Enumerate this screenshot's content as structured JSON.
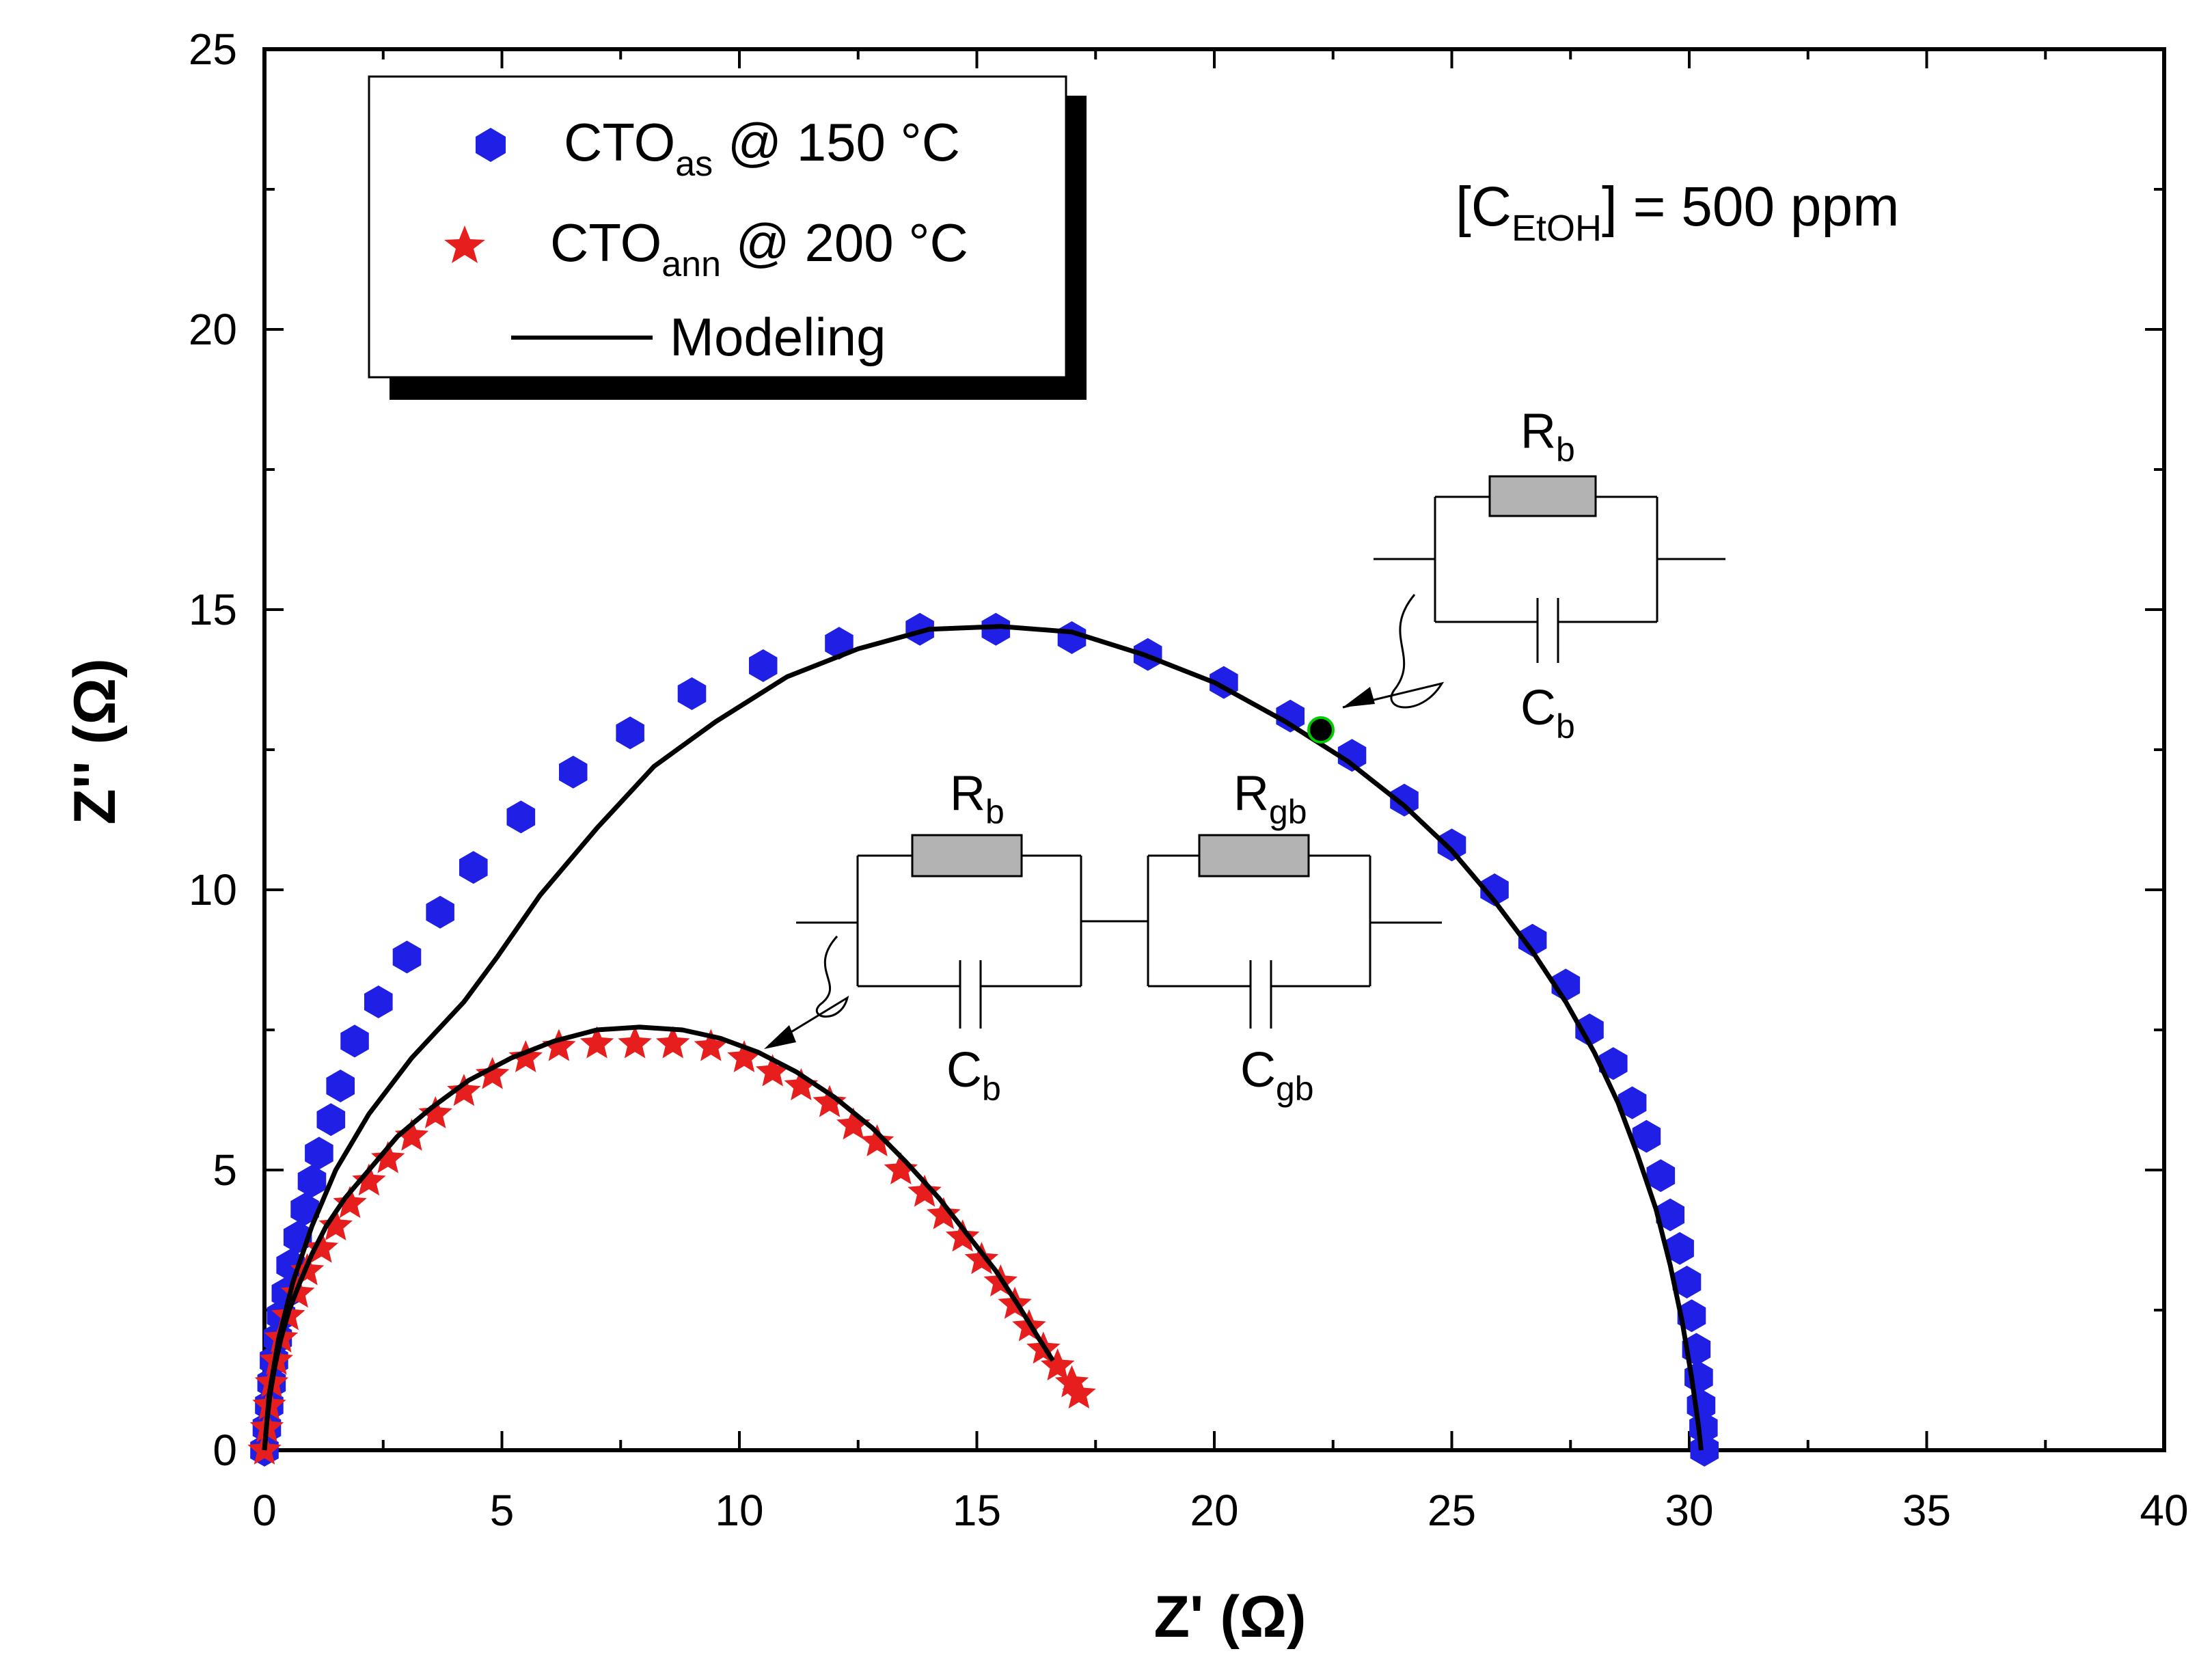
{
  "chart_data": {
    "type": "scatter",
    "title": "",
    "xlabel": "Z' (Ω)",
    "ylabel": "Z'' (Ω)",
    "xlim": [
      0,
      40
    ],
    "ylim": [
      0,
      25
    ],
    "x_ticks": [
      "0",
      "5",
      "10",
      "15",
      "20",
      "25",
      "30",
      "35",
      "40"
    ],
    "y_ticks": [
      "0",
      "5",
      "10",
      "15",
      "20",
      "25"
    ],
    "grid": false,
    "legend_position": "top-left",
    "annotation": {
      "text_main": "[C",
      "text_sub": "EtOH",
      "text_tail": "] = 500 ppm"
    },
    "series": [
      {
        "name_main": "CTO",
        "name_sub": "as",
        "name_tail": " @ 150 °C",
        "marker": "hexagon",
        "color": "#1f1fe6",
        "points": [
          [
            0.0,
            0.0
          ],
          [
            0.05,
            0.4
          ],
          [
            0.1,
            0.8
          ],
          [
            0.15,
            1.2
          ],
          [
            0.2,
            1.6
          ],
          [
            0.28,
            2.0
          ],
          [
            0.35,
            2.4
          ],
          [
            0.45,
            2.8
          ],
          [
            0.55,
            3.3
          ],
          [
            0.7,
            3.8
          ],
          [
            0.85,
            4.3
          ],
          [
            1.0,
            4.8
          ],
          [
            1.15,
            5.3
          ],
          [
            1.4,
            5.9
          ],
          [
            1.6,
            6.5
          ],
          [
            1.9,
            7.3
          ],
          [
            2.4,
            8.0
          ],
          [
            3.0,
            8.8
          ],
          [
            3.7,
            9.6
          ],
          [
            4.4,
            10.4
          ],
          [
            5.4,
            11.3
          ],
          [
            6.5,
            12.1
          ],
          [
            7.7,
            12.8
          ],
          [
            9.0,
            13.5
          ],
          [
            10.5,
            14.0
          ],
          [
            12.1,
            14.4
          ],
          [
            13.8,
            14.65
          ],
          [
            15.4,
            14.65
          ],
          [
            17.0,
            14.5
          ],
          [
            18.6,
            14.2
          ],
          [
            20.2,
            13.7
          ],
          [
            21.6,
            13.1
          ],
          [
            22.9,
            12.4
          ],
          [
            24.0,
            11.6
          ],
          [
            25.0,
            10.8
          ],
          [
            25.9,
            10.0
          ],
          [
            26.7,
            9.1
          ],
          [
            27.4,
            8.3
          ],
          [
            27.9,
            7.5
          ],
          [
            28.4,
            6.9
          ],
          [
            28.8,
            6.2
          ],
          [
            29.1,
            5.6
          ],
          [
            29.4,
            4.9
          ],
          [
            29.6,
            4.2
          ],
          [
            29.8,
            3.6
          ],
          [
            29.95,
            3.0
          ],
          [
            30.05,
            2.4
          ],
          [
            30.15,
            1.8
          ],
          [
            30.2,
            1.3
          ],
          [
            30.25,
            0.8
          ],
          [
            30.3,
            0.4
          ],
          [
            30.32,
            0.0
          ]
        ]
      },
      {
        "name_main": "CTO",
        "name_sub": "ann",
        "name_tail": " @ 200 °C",
        "marker": "star",
        "color": "#e61e1e",
        "points": [
          [
            0.0,
            0.0
          ],
          [
            0.05,
            0.4
          ],
          [
            0.1,
            0.8
          ],
          [
            0.15,
            1.2
          ],
          [
            0.25,
            1.6
          ],
          [
            0.35,
            2.0
          ],
          [
            0.5,
            2.4
          ],
          [
            0.7,
            2.8
          ],
          [
            0.9,
            3.2
          ],
          [
            1.2,
            3.6
          ],
          [
            1.5,
            4.0
          ],
          [
            1.8,
            4.4
          ],
          [
            2.2,
            4.8
          ],
          [
            2.6,
            5.2
          ],
          [
            3.1,
            5.6
          ],
          [
            3.6,
            6.0
          ],
          [
            4.2,
            6.4
          ],
          [
            4.8,
            6.7
          ],
          [
            5.5,
            7.0
          ],
          [
            6.2,
            7.2
          ],
          [
            7.0,
            7.25
          ],
          [
            7.8,
            7.25
          ],
          [
            8.6,
            7.25
          ],
          [
            9.4,
            7.2
          ],
          [
            10.1,
            7.0
          ],
          [
            10.7,
            6.75
          ],
          [
            11.3,
            6.5
          ],
          [
            11.9,
            6.2
          ],
          [
            12.4,
            5.8
          ],
          [
            12.9,
            5.5
          ],
          [
            13.4,
            5.0
          ],
          [
            13.9,
            4.6
          ],
          [
            14.3,
            4.2
          ],
          [
            14.7,
            3.8
          ],
          [
            15.1,
            3.4
          ],
          [
            15.5,
            3.0
          ],
          [
            15.8,
            2.6
          ],
          [
            16.1,
            2.2
          ],
          [
            16.4,
            1.8
          ],
          [
            16.7,
            1.5
          ],
          [
            17.0,
            1.2
          ],
          [
            17.15,
            1.0
          ]
        ]
      },
      {
        "name": "Modeling",
        "marker": "line",
        "color": "#000000",
        "points": [
          [
            0.0,
            0.0
          ],
          [
            0.1,
            1.0
          ],
          [
            0.3,
            2.0
          ],
          [
            0.6,
            3.0
          ],
          [
            1.0,
            4.0
          ],
          [
            1.5,
            5.0
          ],
          [
            2.2,
            6.0
          ],
          [
            3.1,
            7.0
          ],
          [
            4.2,
            8.0
          ],
          [
            4.9,
            8.8
          ],
          [
            5.8,
            9.9
          ],
          [
            7.0,
            11.1
          ],
          [
            8.2,
            12.2
          ],
          [
            9.5,
            13.0
          ],
          [
            11.0,
            13.8
          ],
          [
            12.5,
            14.3
          ],
          [
            14.0,
            14.65
          ],
          [
            15.5,
            14.7
          ],
          [
            17.0,
            14.6
          ],
          [
            18.5,
            14.2
          ],
          [
            20.0,
            13.7
          ],
          [
            21.5,
            13.0
          ],
          [
            22.8,
            12.3
          ],
          [
            24.0,
            11.5
          ],
          [
            25.0,
            10.7
          ],
          [
            25.9,
            9.8
          ],
          [
            26.7,
            8.9
          ],
          [
            27.4,
            8.0
          ],
          [
            28.0,
            7.1
          ],
          [
            28.5,
            6.2
          ],
          [
            28.9,
            5.3
          ],
          [
            29.3,
            4.3
          ],
          [
            29.6,
            3.3
          ],
          [
            29.85,
            2.3
          ],
          [
            30.05,
            1.3
          ],
          [
            30.2,
            0.4
          ],
          [
            30.25,
            0.0
          ]
        ],
        "points2": [
          [
            0.0,
            0.0
          ],
          [
            0.05,
            0.5
          ],
          [
            0.12,
            1.0
          ],
          [
            0.22,
            1.5
          ],
          [
            0.35,
            2.0
          ],
          [
            0.52,
            2.5
          ],
          [
            0.75,
            3.0
          ],
          [
            1.0,
            3.5
          ],
          [
            1.3,
            4.0
          ],
          [
            1.7,
            4.5
          ],
          [
            2.2,
            5.0
          ],
          [
            2.8,
            5.6
          ],
          [
            3.5,
            6.1
          ],
          [
            4.3,
            6.6
          ],
          [
            5.2,
            7.0
          ],
          [
            6.1,
            7.3
          ],
          [
            7.0,
            7.5
          ],
          [
            7.9,
            7.55
          ],
          [
            8.8,
            7.5
          ],
          [
            9.6,
            7.35
          ],
          [
            10.4,
            7.1
          ],
          [
            11.2,
            6.75
          ],
          [
            12.0,
            6.3
          ],
          [
            12.8,
            5.75
          ],
          [
            13.5,
            5.15
          ],
          [
            14.2,
            4.5
          ],
          [
            14.8,
            3.85
          ],
          [
            15.4,
            3.2
          ],
          [
            15.9,
            2.55
          ],
          [
            16.3,
            2.0
          ],
          [
            16.6,
            1.6
          ]
        ]
      }
    ]
  },
  "legend": {
    "modeling_label": "Modeling"
  },
  "circuit_top": {
    "r_main": "R",
    "r_sub": "b",
    "c_main": "C",
    "c_sub": "b"
  },
  "circuit_bottom": {
    "r1_main": "R",
    "r1_sub": "b",
    "c1_main": "C",
    "c1_sub": "b",
    "r2_main": "R",
    "r2_sub": "gb",
    "c2_main": "C",
    "c2_sub": "gb"
  }
}
